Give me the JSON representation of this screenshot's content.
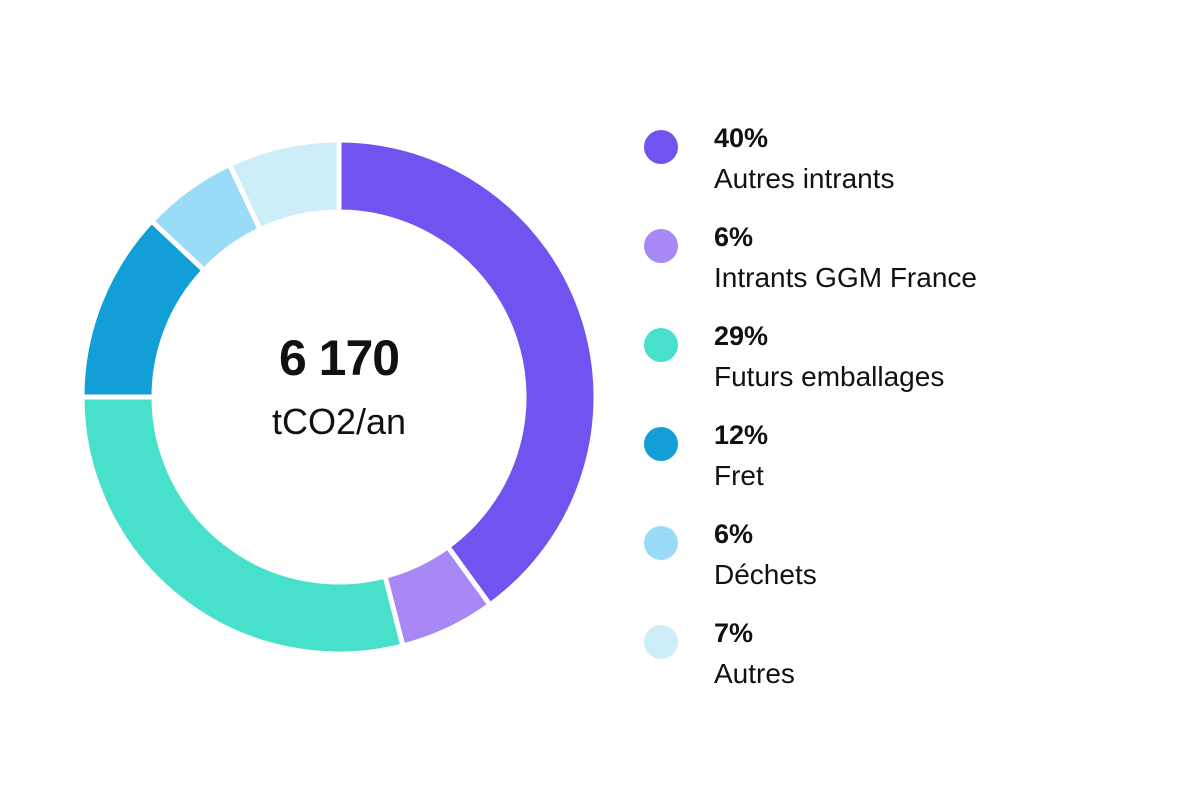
{
  "chart_data": {
    "type": "pie",
    "variant": "donut",
    "title": "",
    "center_label": {
      "value": "6 170",
      "unit": "tCO2/an"
    },
    "categories": [
      "Autres intrants",
      "Intrants GGM France",
      "Futurs emballages",
      "Fret",
      "Déchets",
      "Autres"
    ],
    "values": [
      40,
      6,
      29,
      12,
      6,
      7
    ],
    "value_labels": [
      "40%",
      "6%",
      "29%",
      "12%",
      "6%",
      "7%"
    ],
    "colors": [
      "#7153F0",
      "#A888F5",
      "#47E0CB",
      "#129FD8",
      "#9ADCF7",
      "#CDEDF9"
    ],
    "start_angle_deg": 0,
    "direction": "clockwise",
    "legend_position": "right"
  },
  "legend": {
    "items": [
      {
        "pct": "40%",
        "label": "Autres intrants",
        "color": "#7153F0"
      },
      {
        "pct": "6%",
        "label": "Intrants GGM France",
        "color": "#A888F5"
      },
      {
        "pct": "29%",
        "label": "Futurs emballages",
        "color": "#47E0CB"
      },
      {
        "pct": "12%",
        "label": "Fret",
        "color": "#129FD8"
      },
      {
        "pct": "6%",
        "label": "Déchets",
        "color": "#9ADCF7"
      },
      {
        "pct": "7%",
        "label": "Autres",
        "color": "#CDEDF9"
      }
    ]
  }
}
